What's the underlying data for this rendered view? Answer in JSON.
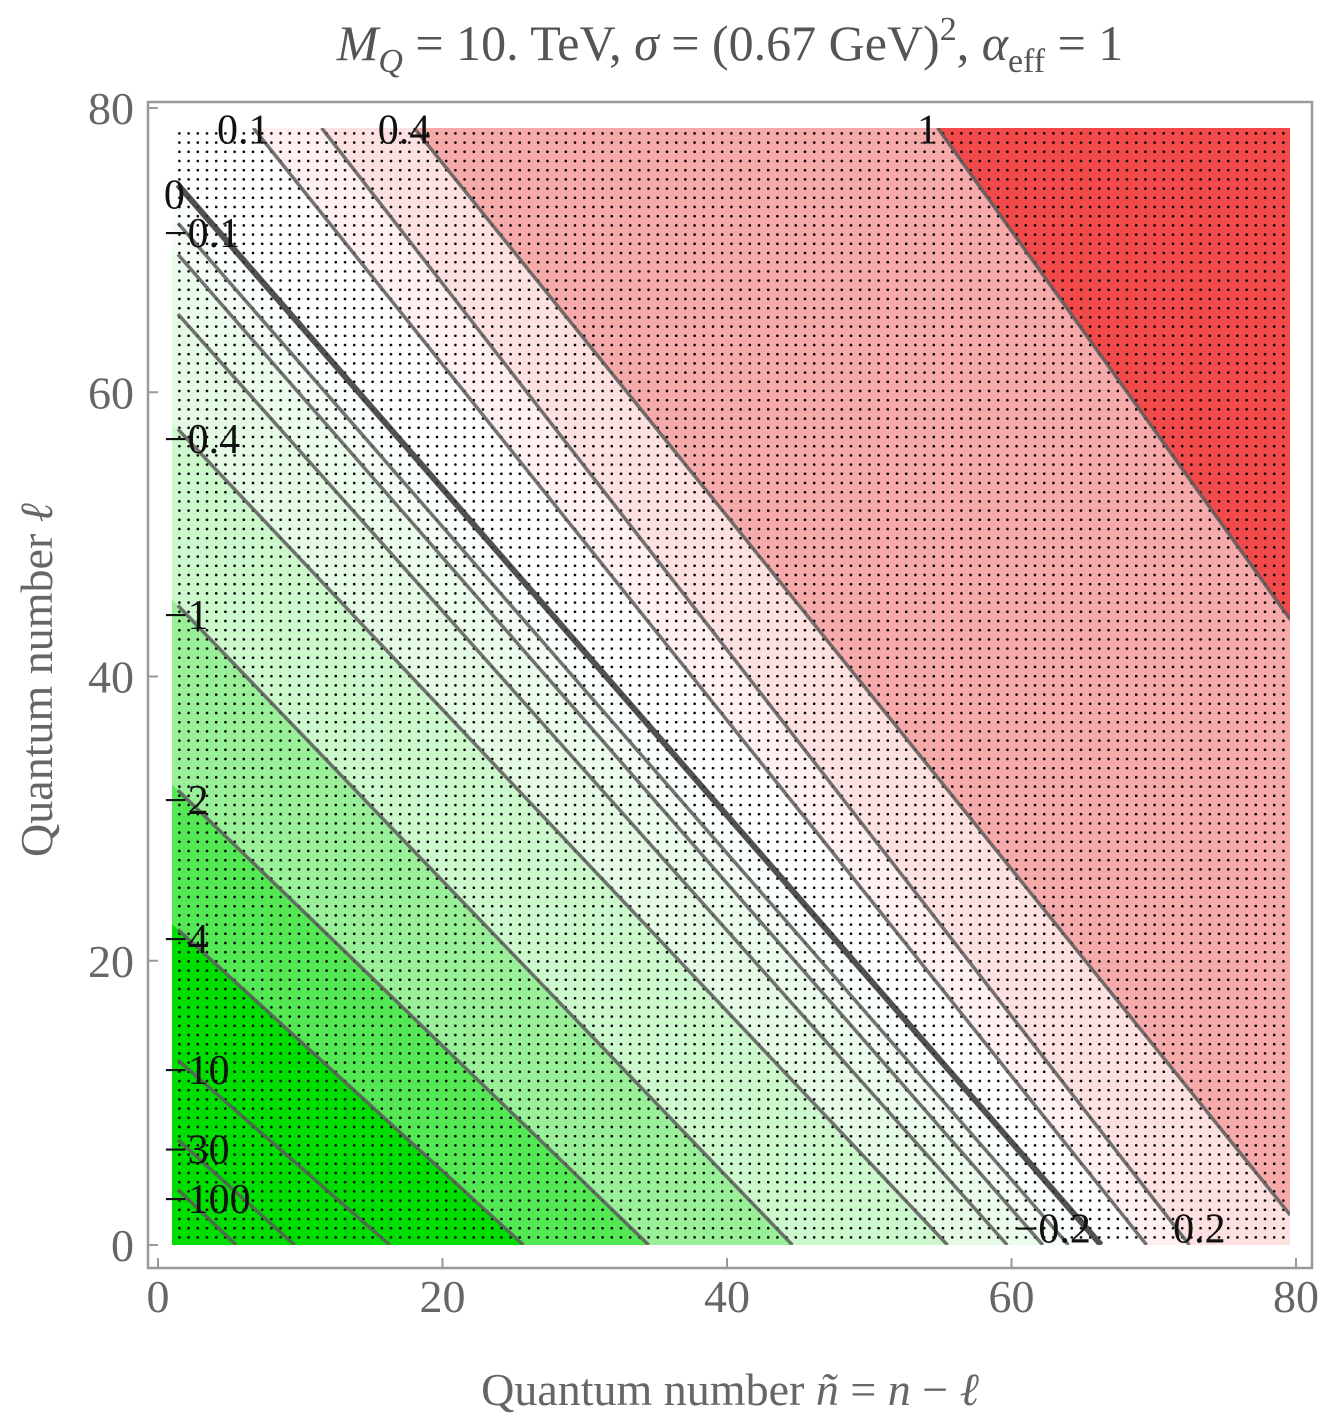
{
  "chart_data": {
    "type": "contour",
    "title": [
      "M",
      "Q",
      " = 10. TeV, ",
      "σ",
      " = (0.67 GeV)",
      "2",
      ", ",
      "α",
      "eff",
      " = 1"
    ],
    "xlabel": [
      "Quantum number ",
      "ñ",
      " = ",
      "n",
      " − ",
      "ℓ"
    ],
    "ylabel": [
      "Quantum number ",
      "ℓ"
    ],
    "xlim": [
      0,
      80
    ],
    "ylim": [
      0,
      80
    ],
    "xticks": [
      0,
      20,
      40,
      60,
      80
    ],
    "yticks": [
      0,
      20,
      40,
      60,
      80
    ],
    "base_color": "#00dd00",
    "contours": [
      {
        "level": -100,
        "label": "−100",
        "line": [
          1.4,
          3.9,
          5.5,
          0
        ],
        "color": "#00dd00"
      },
      {
        "level": -30,
        "label": "−30",
        "line": [
          1.4,
          7.4,
          9.6,
          0
        ],
        "color": "#00dd00"
      },
      {
        "level": -10,
        "label": "−10",
        "line": [
          1.4,
          13,
          16.3,
          0
        ],
        "color": "#00dd00"
      },
      {
        "level": -4,
        "label": "−4",
        "line": [
          1.4,
          22.2,
          25.7,
          0
        ],
        "color": "#55e855"
      },
      {
        "level": -2,
        "label": "−2",
        "line": [
          1.4,
          32,
          34.5,
          0
        ],
        "color": "#99f099"
      },
      {
        "level": -1,
        "label": "−1",
        "line": [
          1.4,
          45,
          44.6,
          0
        ],
        "color": "#ccf8cc"
      },
      {
        "level": -0.4,
        "label": "−0.4",
        "line": [
          1.4,
          57.4,
          55.5,
          0
        ],
        "color": "#e4fae4"
      },
      {
        "level": -0.3,
        "line": [
          1.4,
          65.5,
          59.7,
          0
        ],
        "color": "#ecfcec"
      },
      {
        "level": -0.2,
        "label": "−0.2",
        "label_pos": "end",
        "line": [
          1.4,
          69.7,
          62.2,
          0
        ],
        "color": "#f4fdf4"
      },
      {
        "level": -0.1,
        "label": "−0.1",
        "line": [
          1.4,
          71.9,
          64,
          0
        ],
        "color": "#fafefa"
      },
      {
        "level": 0,
        "label": "0",
        "line": [
          1.4,
          74.6,
          66.3,
          0
        ],
        "color": "#ffffff",
        "thick": true
      },
      {
        "level": 0.1,
        "label": "0.1",
        "line": [
          6.7,
          78.6,
          69.5,
          0
        ],
        "color": "#fff0f0"
      },
      {
        "level": 0.2,
        "label": "0.2",
        "label_pos": "end",
        "line": [
          11.5,
          78.6,
          72.5,
          0
        ],
        "color": "#fde0e0"
      },
      {
        "level": 0.4,
        "label": "0.4",
        "line": [
          18,
          78.6,
          79.6,
          2.1
        ],
        "color": "#f7aaaa"
      },
      {
        "level": 1,
        "label": "1",
        "line": [
          54.8,
          78.6,
          79.6,
          44
        ],
        "color": "#f24a4a"
      }
    ]
  }
}
